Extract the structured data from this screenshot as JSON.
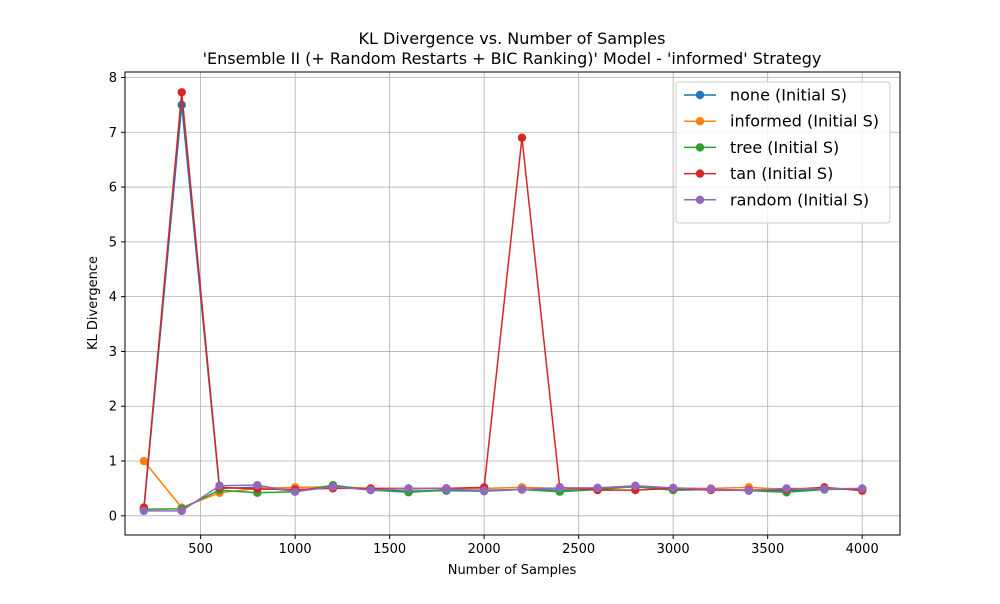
{
  "chart_data": {
    "type": "line",
    "title": "KL Divergence vs. Number of Samples",
    "subtitle": "'Ensemble II (+ Random Restarts + BIC Ranking)' Model - 'informed' Strategy",
    "xlabel": "Number of Samples",
    "ylabel": "KL Divergence",
    "xlim": [
      100,
      4200
    ],
    "ylim": [
      -0.35,
      8.1
    ],
    "xticks": [
      500,
      1000,
      1500,
      2000,
      2500,
      3000,
      3500,
      4000
    ],
    "xtick_labels": [
      "500",
      "1000",
      "1500",
      "2000",
      "2500",
      "3000",
      "3500",
      "4000"
    ],
    "yticks": [
      0,
      1,
      2,
      3,
      4,
      5,
      6,
      7,
      8
    ],
    "ytick_labels": [
      "0",
      "1",
      "2",
      "3",
      "4",
      "5",
      "6",
      "7",
      "8"
    ],
    "grid": true,
    "legend_position": "top-right",
    "x": [
      200,
      400,
      600,
      800,
      1000,
      1200,
      1400,
      1600,
      1800,
      2000,
      2200,
      2400,
      2600,
      2800,
      3000,
      3200,
      3400,
      3600,
      3800,
      4000
    ],
    "series": [
      {
        "name": "none (Initial S)",
        "color": "#1f77b4",
        "values": [
          0.12,
          7.5,
          0.5,
          0.52,
          0.45,
          0.55,
          0.48,
          0.45,
          0.46,
          0.45,
          0.48,
          0.47,
          0.49,
          0.53,
          0.47,
          0.48,
          0.47,
          0.46,
          0.49,
          0.48
        ]
      },
      {
        "name": "informed (Initial S)",
        "color": "#ff7f0e",
        "values": [
          1.0,
          0.15,
          0.42,
          0.5,
          0.52,
          0.53,
          0.5,
          0.49,
          0.5,
          0.5,
          0.52,
          0.5,
          0.47,
          0.54,
          0.5,
          0.5,
          0.52,
          0.48,
          0.5,
          0.49
        ]
      },
      {
        "name": "tree (Initial S)",
        "color": "#2ca02c",
        "values": [
          0.12,
          0.13,
          0.47,
          0.42,
          0.44,
          0.56,
          0.47,
          0.43,
          0.47,
          0.47,
          0.48,
          0.44,
          0.48,
          0.54,
          0.47,
          0.48,
          0.46,
          0.43,
          0.48,
          0.49
        ]
      },
      {
        "name": "tan (Initial S)",
        "color": "#d62728",
        "values": [
          0.15,
          7.73,
          0.52,
          0.49,
          0.48,
          0.5,
          0.5,
          0.5,
          0.5,
          0.52,
          6.9,
          0.52,
          0.47,
          0.47,
          0.5,
          0.47,
          0.47,
          0.48,
          0.52,
          0.46
        ]
      },
      {
        "name": "random (Initial S)",
        "color": "#9467bd",
        "values": [
          0.09,
          0.09,
          0.55,
          0.56,
          0.44,
          0.53,
          0.47,
          0.5,
          0.49,
          0.46,
          0.48,
          0.51,
          0.51,
          0.55,
          0.51,
          0.49,
          0.46,
          0.5,
          0.49,
          0.5
        ]
      }
    ]
  }
}
